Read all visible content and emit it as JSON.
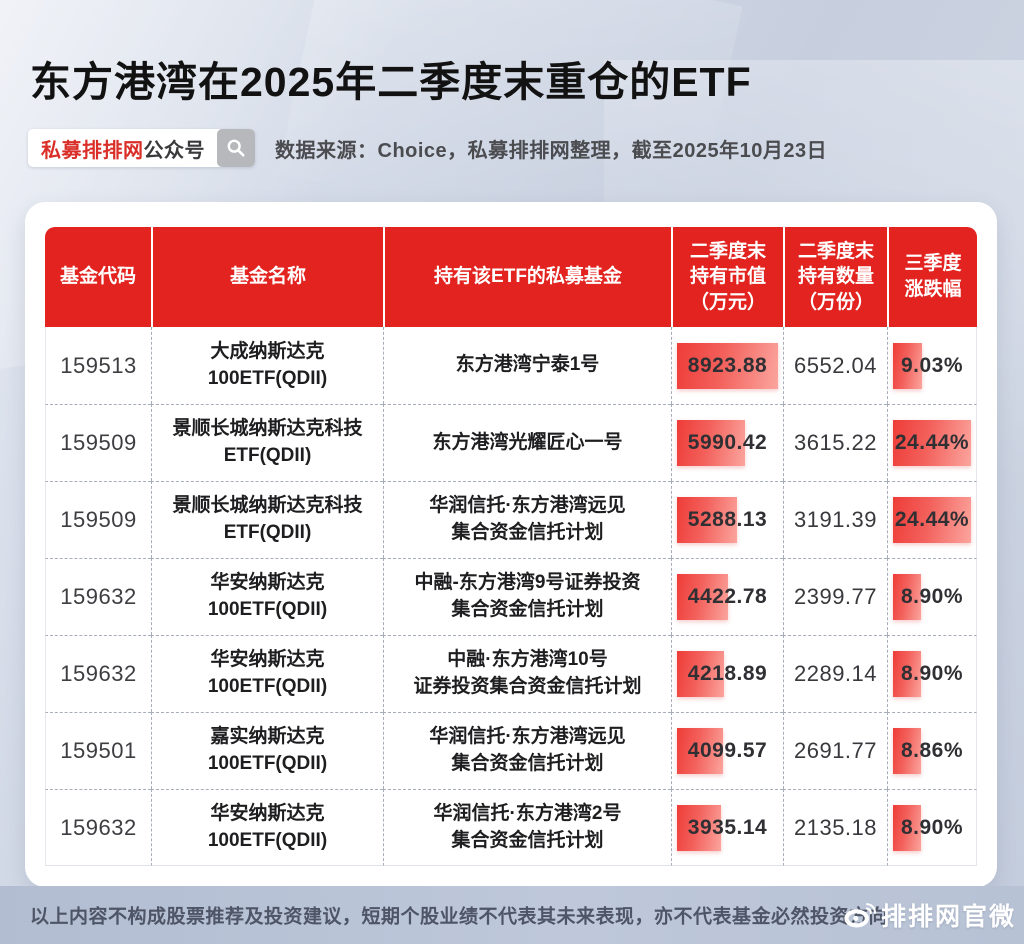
{
  "title": "东方港湾在2025年二季度末重仓的ETF",
  "badge": {
    "brand": "私募排排网",
    "suffix": "公众号",
    "search_icon": "magnifier-icon"
  },
  "source_note": "数据来源：Choice，私募排排网整理，截至2025年10月23日",
  "watermark": {
    "text": "私募排排网"
  },
  "colors": {
    "header_red": "#e3231f",
    "bar_gradient_from": "#ee3c38",
    "bar_gradient_to": "#fba59e",
    "brand_red": "#da2f29",
    "background": "#ccd4e2"
  },
  "chart_data": {
    "type": "table",
    "title": "东方港湾在2025年二季度末重仓的ETF",
    "columns": [
      "基金代码",
      "基金名称",
      "持有该ETF的私募基金",
      "二季度末\n持有市值\n（万元）",
      "二季度末\n持有数量\n（万份）",
      "三季度\n涨跌幅"
    ],
    "rows": [
      {
        "code": "159513",
        "etf_name": "大成纳斯达克\n100ETF(QDII)",
        "holder_fund": "东方港湾宁泰1号",
        "market_value_wan": "8923.88",
        "quantity_wan": "6552.04",
        "q3_change": "9.03%",
        "mv_bar_pct": 100,
        "chg_bar_pct": 37
      },
      {
        "code": "159509",
        "etf_name": "景顺长城纳斯达克科技\nETF(QDII)",
        "holder_fund": "东方港湾光耀匠心一号",
        "market_value_wan": "5990.42",
        "quantity_wan": "3615.22",
        "q3_change": "24.44%",
        "mv_bar_pct": 67,
        "chg_bar_pct": 100
      },
      {
        "code": "159509",
        "etf_name": "景顺长城纳斯达克科技\nETF(QDII)",
        "holder_fund": "华润信托·东方港湾远见\n集合资金信托计划",
        "market_value_wan": "5288.13",
        "quantity_wan": "3191.39",
        "q3_change": "24.44%",
        "mv_bar_pct": 59,
        "chg_bar_pct": 100
      },
      {
        "code": "159632",
        "etf_name": "华安纳斯达克\n100ETF(QDII)",
        "holder_fund": "中融-东方港湾9号证券投资\n集合资金信托计划",
        "market_value_wan": "4422.78",
        "quantity_wan": "2399.77",
        "q3_change": "8.90%",
        "mv_bar_pct": 50,
        "chg_bar_pct": 36
      },
      {
        "code": "159632",
        "etf_name": "华安纳斯达克\n100ETF(QDII)",
        "holder_fund": "中融·东方港湾10号\n证券投资集合资金信托计划",
        "market_value_wan": "4218.89",
        "quantity_wan": "2289.14",
        "q3_change": "8.90%",
        "mv_bar_pct": 47,
        "chg_bar_pct": 36
      },
      {
        "code": "159501",
        "etf_name": "嘉实纳斯达克\n100ETF(QDII)",
        "holder_fund": "华润信托·东方港湾远见\n集合资金信托计划",
        "market_value_wan": "4099.57",
        "quantity_wan": "2691.77",
        "q3_change": "8.86%",
        "mv_bar_pct": 46,
        "chg_bar_pct": 36
      },
      {
        "code": "159632",
        "etf_name": "华安纳斯达克\n100ETF(QDII)",
        "holder_fund": "华润信托·东方港湾2号\n集合资金信托计划",
        "market_value_wan": "3935.14",
        "quantity_wan": "2135.18",
        "q3_change": "8.90%",
        "mv_bar_pct": 44,
        "chg_bar_pct": 36
      }
    ],
    "value_columns_units": {
      "market_value": "万元",
      "quantity": "万份"
    },
    "bars": "red data bars, width proportional to value; max market value 8923.88, max change 24.44%"
  },
  "footer": {
    "disclaimer": "以上内容不构成股票推荐及投资建议，短期个股业绩不代表其未来表现，亦不代表基金必然投资方向",
    "weibo_label": "排排网官微"
  }
}
